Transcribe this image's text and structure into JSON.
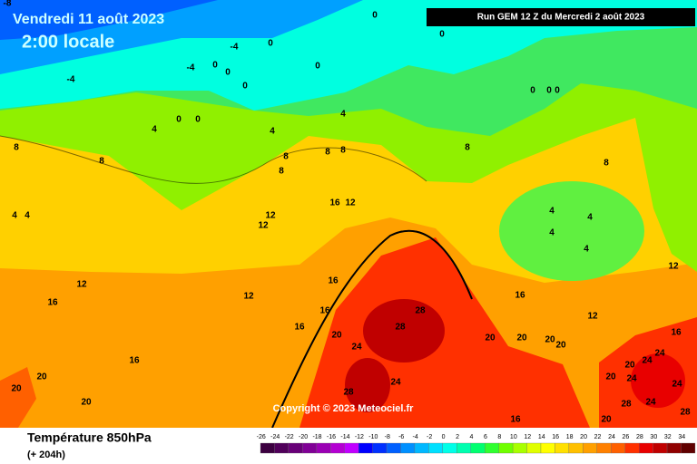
{
  "header": {
    "date": "Vendredi 11 août 2023",
    "time": "2:00 locale",
    "run": "Run GEM 12 Z du Mercredi 2 août 2023"
  },
  "copyright": "Copyright © 2023 Meteociel.fr",
  "footer": {
    "title": "Température 850hPa",
    "lead": "(+ 204h)"
  },
  "legend": {
    "labels": [
      -26,
      -24,
      -22,
      -20,
      -18,
      -16,
      -14,
      -12,
      -10,
      -8,
      -6,
      -4,
      -2,
      0,
      2,
      4,
      6,
      8,
      10,
      12,
      14,
      16,
      18,
      20,
      22,
      24,
      26,
      28,
      30,
      32,
      34
    ],
    "colors": [
      "#3c0040",
      "#50005a",
      "#680078",
      "#800096",
      "#9a00b4",
      "#b400d2",
      "#c000ff",
      "#0000ff",
      "#0030ff",
      "#0060ff",
      "#0090ff",
      "#00b8ff",
      "#00e0ff",
      "#00ffe8",
      "#00ffb0",
      "#00ff70",
      "#30ff30",
      "#70ff00",
      "#a8ff00",
      "#e0ff00",
      "#ffff00",
      "#ffe000",
      "#ffc000",
      "#ffa000",
      "#ff8000",
      "#ff6000",
      "#ff3000",
      "#e80000",
      "#c00000",
      "#900000",
      "#600000"
    ]
  },
  "contour_labels": [
    -8,
    0,
    0,
    -4,
    0,
    0,
    0,
    -4,
    0,
    0,
    -4,
    0,
    0,
    4,
    4,
    4,
    8,
    8,
    8,
    8,
    8,
    8,
    8,
    8,
    4,
    4,
    4,
    4,
    4,
    4,
    12,
    12,
    16,
    12,
    12,
    12,
    12,
    16,
    16,
    16,
    16,
    20,
    24,
    28,
    28,
    16,
    12,
    20,
    20,
    16,
    20,
    20,
    20,
    28,
    24,
    20,
    20,
    20,
    24,
    24,
    20,
    24,
    24,
    24,
    28,
    16,
    20,
    28,
    16,
    0,
    0,
    0
  ]
}
